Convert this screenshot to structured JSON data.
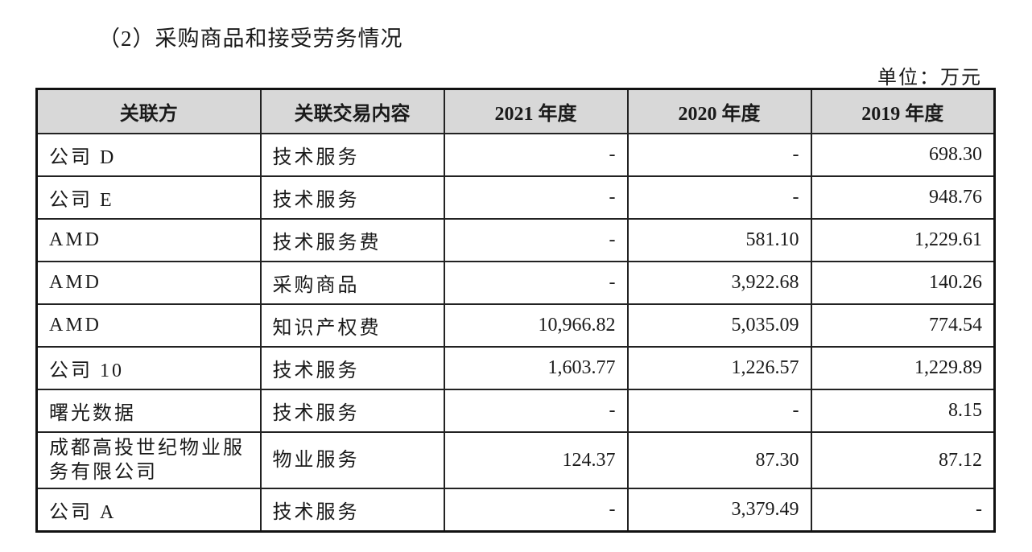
{
  "title": "（2）采购商品和接受劳务情况",
  "unit": "单位：万元",
  "table": {
    "headers": [
      "关联方",
      "关联交易内容",
      "2021 年度",
      "2020 年度",
      "2019 年度"
    ],
    "rows": [
      [
        "公司 D",
        "技术服务",
        "-",
        "-",
        "698.30"
      ],
      [
        "公司 E",
        "技术服务",
        "-",
        "-",
        "948.76"
      ],
      [
        "AMD",
        "技术服务费",
        "-",
        "581.10",
        "1,229.61"
      ],
      [
        "AMD",
        "采购商品",
        "-",
        "3,922.68",
        "140.26"
      ],
      [
        "AMD",
        "知识产权费",
        "10,966.82",
        "5,035.09",
        "774.54"
      ],
      [
        "公司 10",
        "技术服务",
        "1,603.77",
        "1,226.57",
        "1,229.89"
      ],
      [
        "曙光数据",
        "技术服务",
        "-",
        "-",
        "8.15"
      ],
      [
        "成都高投世纪物业服务有限公司",
        "物业服务",
        "124.37",
        "87.30",
        "87.12"
      ],
      [
        "公司 A",
        "技术服务",
        "-",
        "3,379.49",
        "-"
      ]
    ]
  }
}
